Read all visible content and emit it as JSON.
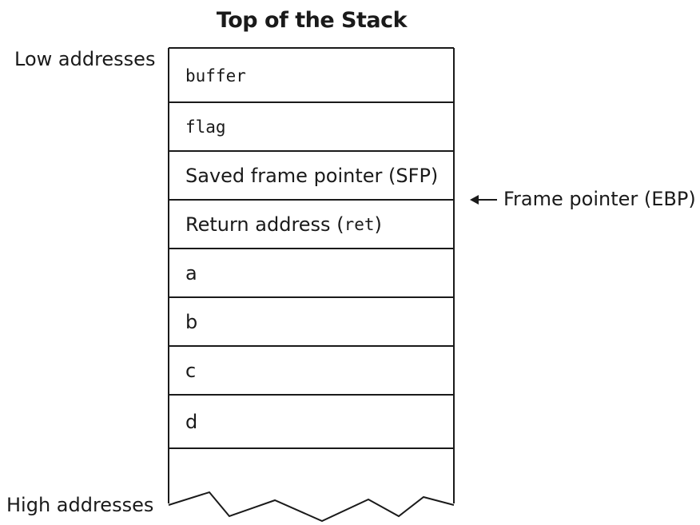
{
  "title": "Top of the Stack",
  "labels": {
    "low": "Low addresses",
    "high": "High addresses",
    "frame_pointer": "Frame pointer (EBP)"
  },
  "cells": [
    {
      "text": "buffer",
      "style": "mono"
    },
    {
      "text": "flag",
      "style": "mono"
    },
    {
      "text": "Saved frame pointer (SFP)",
      "style": "sans"
    },
    {
      "prefix": "Return address (",
      "code": "ret",
      "suffix": ")",
      "style": "mixed"
    },
    {
      "text": "a",
      "style": "sans"
    },
    {
      "text": "b",
      "style": "sans"
    },
    {
      "text": "c",
      "style": "sans"
    },
    {
      "text": "d",
      "style": "sans"
    }
  ],
  "colors": {
    "line": "#1a1a1a",
    "text": "#1a1a1a",
    "background": "#ffffff"
  },
  "icons": {
    "arrow": "left-arrow-icon"
  }
}
